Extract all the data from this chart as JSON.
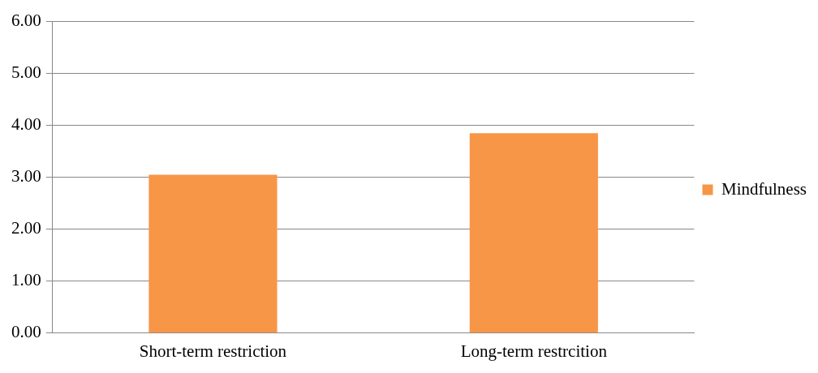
{
  "chart_data": {
    "type": "bar",
    "categories": [
      "Short-term restriction",
      "Long-term restrcition"
    ],
    "series": [
      {
        "name": "Mindfulness",
        "color": "#f79646",
        "values": [
          3.05,
          3.85
        ]
      }
    ],
    "ylim": [
      0,
      6
    ],
    "yticks": [
      {
        "value": 0,
        "label": "0.00"
      },
      {
        "value": 1,
        "label": "1.00"
      },
      {
        "value": 2,
        "label": "2.00"
      },
      {
        "value": 3,
        "label": "3.00"
      },
      {
        "value": 4,
        "label": "4.00"
      },
      {
        "value": 5,
        "label": "5.00"
      },
      {
        "value": 6,
        "label": "6.00"
      }
    ],
    "grid": "y",
    "legend": "right"
  }
}
